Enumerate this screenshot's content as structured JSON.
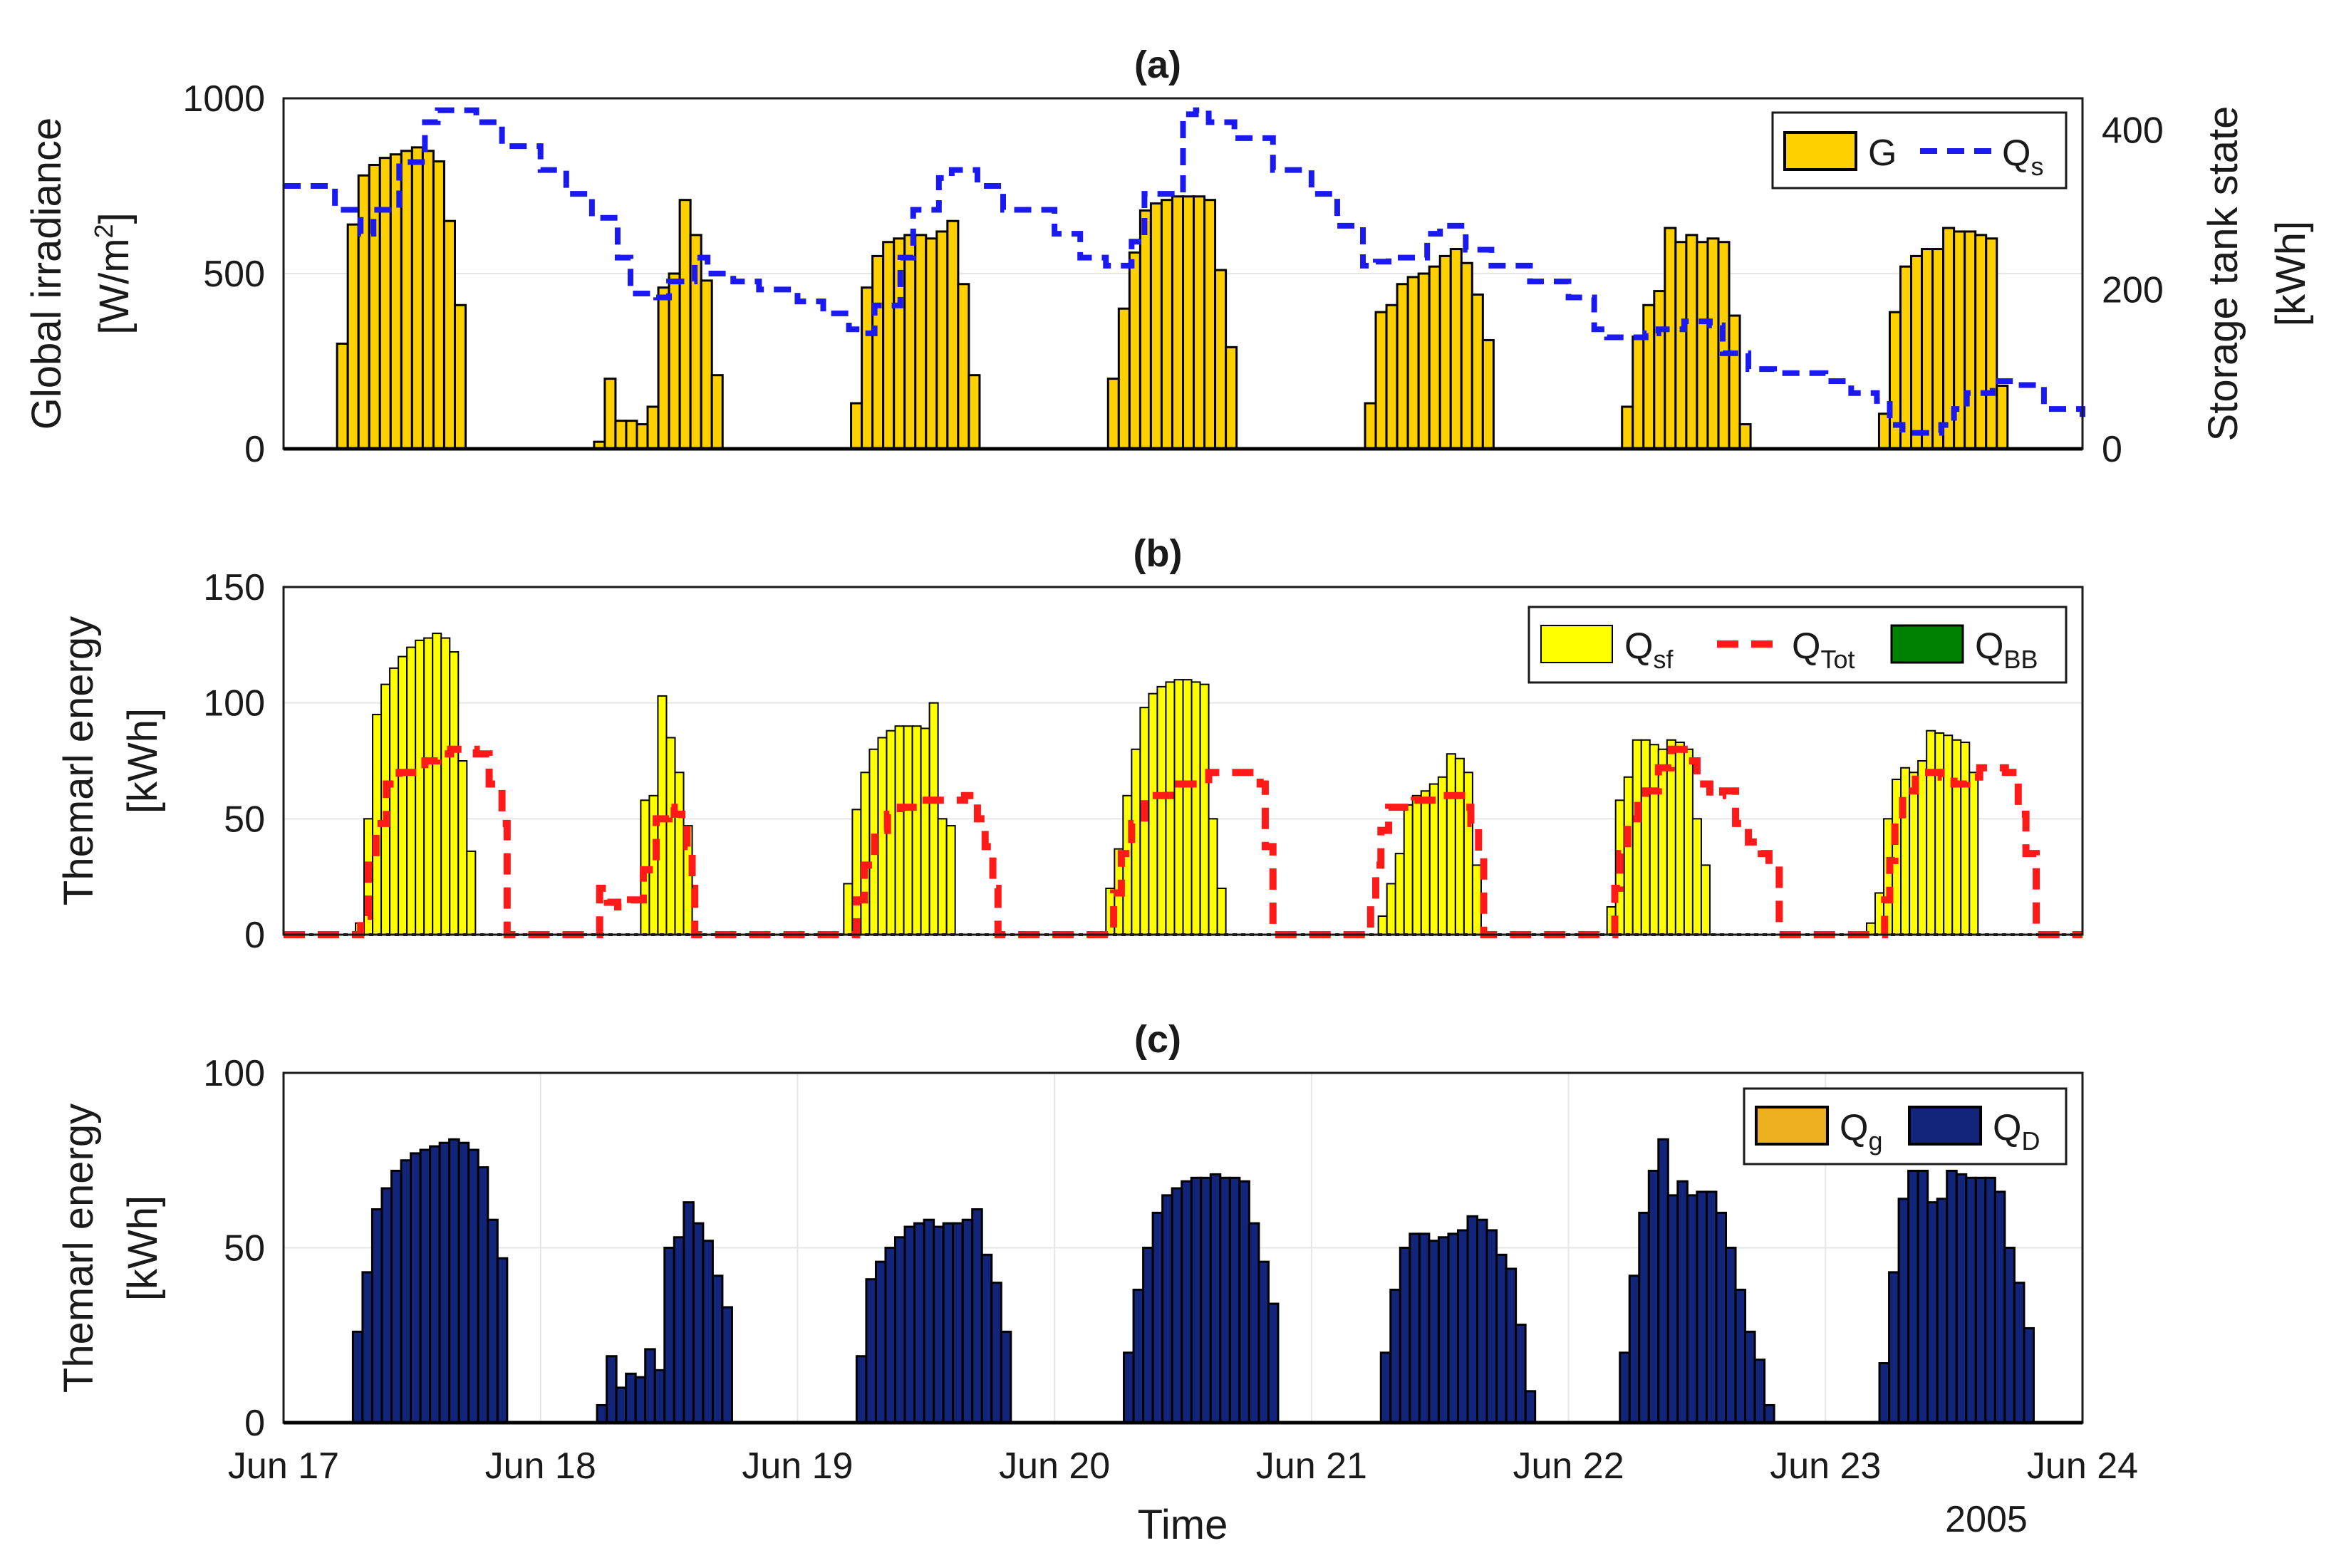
{
  "figure": {
    "x_time_label": "Time",
    "year_label": "2005",
    "x_ticks": [
      "Jun 17",
      "Jun 18",
      "Jun 19",
      "Jun 20",
      "Jun 21",
      "Jun 22",
      "Jun 23",
      "Jun 24"
    ]
  },
  "colors": {
    "G": "#FFD000",
    "Q_s": "#1A1AF0",
    "Q_sf": "#FFFF00",
    "Q_Tot": "#FF1A1A",
    "Q_BB": "#008000",
    "Q_g": "#EDB120",
    "Q_D": "#13257A",
    "grid": "#e6e6e6"
  },
  "chart_data": [
    {
      "type": "bar",
      "id": "a",
      "title": "(a)",
      "ylabel_left": [
        "Global irradiance",
        "[W/m",
        "2",
        "]"
      ],
      "ylabel_right": [
        "Storage tank state",
        "[kWh]"
      ],
      "ylim_left": [
        0,
        1000
      ],
      "ylim_right": [
        0,
        440
      ],
      "yticks_left": [
        0,
        500,
        1000
      ],
      "yticks_right": [
        0,
        200,
        400
      ],
      "x_range_days": [
        0,
        7
      ],
      "legend": [
        {
          "label": "G",
          "sub": ""
        },
        {
          "label": "Q",
          "sub": "s"
        }
      ],
      "legend_position": "top-right",
      "daily_start_hour": 5,
      "bars_G": [
        [
          300,
          640,
          780,
          810,
          830,
          840,
          850,
          860,
          850,
          820,
          650,
          410
        ],
        [
          20,
          200,
          80,
          80,
          70,
          120,
          460,
          500,
          710,
          610,
          480,
          210
        ],
        [
          130,
          460,
          550,
          590,
          600,
          610,
          610,
          600,
          620,
          650,
          470,
          210
        ],
        [
          200,
          400,
          560,
          680,
          700,
          710,
          720,
          720,
          720,
          710,
          510,
          290
        ],
        [
          130,
          390,
          410,
          470,
          490,
          500,
          520,
          550,
          570,
          530,
          440,
          310
        ],
        [
          120,
          320,
          410,
          450,
          630,
          590,
          610,
          590,
          600,
          590,
          380,
          70
        ],
        [
          100,
          390,
          520,
          550,
          570,
          570,
          630,
          620,
          620,
          610,
          600,
          180
        ]
      ],
      "series_Qs": {
        "name": "Q_s",
        "x_days": [
          0,
          0.2,
          0.3,
          0.35,
          0.45,
          0.55,
          0.6,
          0.7,
          0.75,
          0.85,
          1.0,
          1.1,
          1.2,
          1.3,
          1.35,
          1.45,
          1.5,
          1.6,
          1.65,
          1.75,
          1.85,
          2.0,
          2.1,
          2.2,
          2.25,
          2.3,
          2.4,
          2.45,
          2.55,
          2.6,
          2.7,
          2.8,
          3.0,
          3.1,
          3.2,
          3.3,
          3.35,
          3.5,
          3.55,
          3.6,
          3.7,
          3.85,
          4.0,
          4.1,
          4.2,
          4.25,
          4.3,
          4.45,
          4.5,
          4.6,
          4.7,
          4.85,
          5.0,
          5.1,
          5.15,
          5.3,
          5.35,
          5.45,
          5.55,
          5.6,
          5.7,
          5.8,
          6.0,
          6.1,
          6.2,
          6.25,
          6.3,
          6.45,
          6.5,
          6.55,
          6.65,
          6.75,
          6.85,
          7.0
        ],
        "values": [
          330,
          300,
          270,
          300,
          360,
          410,
          425,
          425,
          410,
          380,
          350,
          320,
          290,
          240,
          195,
          190,
          210,
          240,
          220,
          210,
          200,
          185,
          170,
          150,
          145,
          180,
          240,
          300,
          340,
          350,
          330,
          300,
          270,
          240,
          230,
          260,
          320,
          420,
          425,
          410,
          390,
          350,
          320,
          280,
          230,
          235,
          240,
          270,
          280,
          250,
          230,
          210,
          190,
          150,
          140,
          145,
          150,
          160,
          155,
          120,
          100,
          95,
          85,
          70,
          60,
          30,
          20,
          30,
          50,
          70,
          85,
          80,
          50,
          40
        ]
      }
    },
    {
      "type": "bar",
      "id": "b",
      "title": "(b)",
      "ylabel": [
        "Themarl energy",
        "[kWh]"
      ],
      "ylim": [
        0,
        150
      ],
      "yticks": [
        0,
        50,
        100,
        150
      ],
      "x_range_days": [
        0,
        7
      ],
      "legend": [
        {
          "label": "Q",
          "sub": "sf"
        },
        {
          "label": "Q",
          "sub": "Tot"
        },
        {
          "label": "Q",
          "sub": "BB"
        }
      ],
      "legend_position": "top-right",
      "bars_Qsf": [
        [
          5,
          50,
          95,
          108,
          115,
          120,
          124,
          127,
          128,
          130,
          128,
          122,
          75,
          36
        ],
        [
          58,
          60,
          103,
          85,
          70,
          47
        ],
        [
          22,
          54,
          70,
          80,
          85,
          88,
          90,
          90,
          90,
          89,
          100,
          50,
          47
        ],
        [
          20,
          37,
          60,
          80,
          98,
          104,
          107,
          109,
          110,
          110,
          109,
          108,
          50,
          20
        ],
        [
          8,
          22,
          35,
          56,
          60,
          62,
          65,
          68,
          78,
          76,
          70,
          30
        ],
        [
          12,
          58,
          68,
          84,
          84,
          82,
          80,
          84,
          83,
          80,
          50,
          30
        ],
        [
          5,
          18,
          50,
          67,
          72,
          70,
          75,
          88,
          87,
          86,
          84,
          83,
          70
        ]
      ],
      "bars_Qsf_start_days": [
        0.28,
        1.39,
        2.18,
        3.2,
        4.26,
        5.15,
        6.16
      ],
      "series_QTot": {
        "name": "Q_Tot",
        "x_days": [
          0,
          0.28,
          0.3,
          0.33,
          0.36,
          0.4,
          0.45,
          0.55,
          0.6,
          0.65,
          0.7,
          0.75,
          0.8,
          0.85,
          0.87,
          1.0,
          1.1,
          1.2,
          1.23,
          1.26,
          1.3,
          1.35,
          1.4,
          1.45,
          1.5,
          1.52,
          1.55,
          1.57,
          1.59,
          1.6,
          1.7,
          2.0,
          2.2,
          2.23,
          2.26,
          2.3,
          2.35,
          2.4,
          2.45,
          2.55,
          2.65,
          2.7,
          2.73,
          2.76,
          2.78,
          3.0,
          3.2,
          3.23,
          3.26,
          3.3,
          3.35,
          3.45,
          3.6,
          3.7,
          3.8,
          3.82,
          3.85,
          4.0,
          4.2,
          4.23,
          4.25,
          4.27,
          4.3,
          4.4,
          4.5,
          4.6,
          4.62,
          4.65,
          4.67,
          4.8,
          5.0,
          5.15,
          5.18,
          5.2,
          5.23,
          5.27,
          5.3,
          5.35,
          5.4,
          5.45,
          5.5,
          5.55,
          5.6,
          5.65,
          5.7,
          5.75,
          5.78,
          5.82,
          6.0,
          6.2,
          6.23,
          6.25,
          6.27,
          6.3,
          6.35,
          6.45,
          6.5,
          6.55,
          6.6,
          6.65,
          6.7,
          6.75,
          6.78,
          6.82,
          7.0
        ],
        "values": [
          0,
          0,
          8,
          30,
          48,
          65,
          70,
          75,
          78,
          80,
          80,
          78,
          65,
          48,
          0,
          0,
          0,
          0,
          20,
          14,
          12,
          15,
          28,
          50,
          55,
          52,
          48,
          38,
          20,
          0,
          0,
          0,
          0,
          15,
          30,
          45,
          52,
          55,
          58,
          58,
          60,
          50,
          38,
          20,
          0,
          0,
          0,
          18,
          35,
          48,
          60,
          65,
          70,
          70,
          65,
          38,
          0,
          0,
          0,
          15,
          30,
          45,
          55,
          58,
          60,
          55,
          48,
          35,
          0,
          0,
          0,
          0,
          20,
          35,
          50,
          58,
          62,
          72,
          80,
          75,
          65,
          60,
          62,
          48,
          40,
          35,
          30,
          0,
          0,
          0,
          15,
          32,
          48,
          62,
          70,
          68,
          65,
          68,
          72,
          72,
          70,
          52,
          35,
          0,
          0
        ]
      },
      "series_QBB_values": "all zero"
    },
    {
      "type": "bar",
      "id": "c",
      "title": "(c)",
      "ylabel": [
        "Themarl energy",
        "[kWh]"
      ],
      "ylim": [
        0,
        100
      ],
      "yticks": [
        0,
        50,
        100
      ],
      "x_range_days": [
        0,
        7
      ],
      "legend": [
        {
          "label": "Q",
          "sub": "g"
        },
        {
          "label": "Q",
          "sub": "D"
        }
      ],
      "legend_position": "top-right",
      "daily_start_hour": 5,
      "bars_QD": [
        [
          26,
          43,
          61,
          67,
          72,
          75,
          77,
          78,
          79,
          80,
          81,
          80,
          78,
          73,
          58,
          47
        ],
        [
          5,
          19,
          10,
          14,
          13,
          21,
          15,
          50,
          53,
          63,
          57,
          52,
          42,
          33
        ],
        [
          19,
          41,
          46,
          50,
          53,
          56,
          57,
          58,
          56,
          57,
          57,
          58,
          61,
          48,
          40,
          26
        ],
        [
          20,
          38,
          50,
          60,
          65,
          67,
          69,
          70,
          70,
          71,
          70,
          70,
          69,
          57,
          46,
          34
        ],
        [
          20,
          38,
          50,
          54,
          54,
          52,
          53,
          54,
          55,
          59,
          58,
          55,
          48,
          44,
          28,
          9
        ],
        [
          20,
          42,
          60,
          72,
          81,
          65,
          69,
          65,
          66,
          66,
          60,
          50,
          38,
          26,
          18,
          5
        ],
        [
          17,
          43,
          64,
          72,
          72,
          63,
          64,
          72,
          71,
          70,
          70,
          70,
          66,
          50,
          40,
          27
        ]
      ],
      "bars_QD_start_days": [
        0.27,
        1.22,
        2.23,
        3.27,
        4.27,
        5.2,
        6.21
      ]
    }
  ]
}
